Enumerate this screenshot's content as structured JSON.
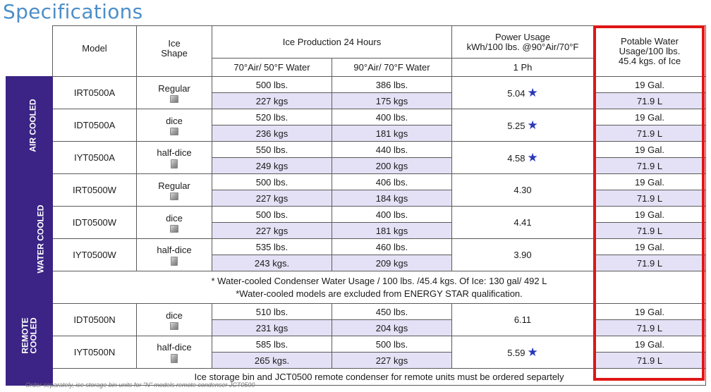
{
  "title": "Specifications",
  "headers": {
    "model": "Model",
    "ice_shape_line1": "Ice",
    "ice_shape_line2": "Shape",
    "production": "Ice Production 24 Hours",
    "prod_col1": "70°Air/ 50°F Water",
    "prod_col2": "90°Air/ 70°F Water",
    "power_line1": "Power Usage",
    "power_line2": "kWh/100 lbs. @90°Air/70°F",
    "power_sub": "1 Ph",
    "water_line1": "Potable Water",
    "water_line2": "Usage/100 lbs.",
    "water_line3": "45.4 kgs. of Ice"
  },
  "groups": [
    {
      "label": "AIR COOLED",
      "rows": [
        {
          "model": "IRT0500A",
          "shape": "Regular",
          "shape_icon": "regular-cube-icon",
          "p70_lbs": "500 lbs.",
          "p70_kg": "227 kgs",
          "p90_lbs": "386 lbs.",
          "p90_kg": "175 kgs",
          "power": "5.04",
          "star": true,
          "water_gal": "19 Gal.",
          "water_l": "71.9 L"
        },
        {
          "model": "IDT0500A",
          "shape": "dice",
          "shape_icon": "dice-cube-icon",
          "p70_lbs": "520 lbs.",
          "p70_kg": "236 kgs",
          "p90_lbs": "400 lbs.",
          "p90_kg": "181 kgs",
          "power": "5.25",
          "star": true,
          "water_gal": "19 Gal.",
          "water_l": "71.9 L"
        },
        {
          "model": "IYT0500A",
          "shape": "half-dice",
          "shape_icon": "half-dice-cube-icon",
          "p70_lbs": "550 lbs.",
          "p70_kg": "249 kgs",
          "p90_lbs": "440 lbs.",
          "p90_kg": "200 kgs",
          "power": "4.58",
          "star": true,
          "water_gal": "19 Gal.",
          "water_l": "71.9 L"
        }
      ]
    },
    {
      "label": "WATER COOLED",
      "rows": [
        {
          "model": "IRT0500W",
          "shape": "Regular",
          "shape_icon": "regular-cube-icon",
          "p70_lbs": "500 lbs.",
          "p70_kg": "227 kgs",
          "p90_lbs": "406 lbs.",
          "p90_kg": "184 kgs",
          "power": "4.30",
          "star": false,
          "water_gal": "19 Gal.",
          "water_l": "71.9 L"
        },
        {
          "model": "IDT0500W",
          "shape": "dice",
          "shape_icon": "dice-cube-icon",
          "p70_lbs": "500 lbs.",
          "p70_kg": "227 kgs",
          "p90_lbs": "400 lbs.",
          "p90_kg": "181 kgs",
          "power": "4.41",
          "star": false,
          "water_gal": "19 Gal.",
          "water_l": "71.9 L"
        },
        {
          "model": "IYT0500W",
          "shape": "half-dice",
          "shape_icon": "half-dice-cube-icon",
          "p70_lbs": "535 lbs.",
          "p70_kg": "243 kgs.",
          "p90_lbs": "460 lbs.",
          "p90_kg": "209 kgs",
          "power": "3.90",
          "star": false,
          "water_gal": "19 Gal.",
          "water_l": "71.9 L"
        }
      ],
      "note_line1": "* Water-cooled Condenser Water Usage / 100 lbs. /45.4 kgs. Of Ice: 130 gal/ 492 L",
      "note_line2": "*Water-cooled models are excluded from ENERGY STAR qualification."
    },
    {
      "label_line1": "REMOTE",
      "label_line2": "COOLED",
      "rows": [
        {
          "model": "IDT0500N",
          "shape": "dice",
          "shape_icon": "dice-cube-icon",
          "p70_lbs": "510 lbs.",
          "p70_kg": "231 kgs",
          "p90_lbs": "450 lbs.",
          "p90_kg": "204 kgs",
          "power": "6.11",
          "star": false,
          "water_gal": "19 Gal.",
          "water_l": "71.9 L"
        },
        {
          "model": "IYT0500N",
          "shape": "half-dice",
          "shape_icon": "half-dice-cube-icon",
          "p70_lbs": "585 lbs.",
          "p70_kg": "265 kgs.",
          "p90_lbs": "500 lbs.",
          "p90_kg": "227 kgs",
          "power": "5.59",
          "star": true,
          "water_gal": "19 Gal.",
          "water_l": "71.9 L"
        }
      ],
      "footer": "Ice storage bin and JCT0500 remote condenser for remote units must be ordered separtely"
    }
  ],
  "star_glyph": "★",
  "star_color": "#2b38b8",
  "sidebar_color": "#3b2485",
  "highlight_color": "#e01616",
  "footnote": "Order separately, ice storage bin units for \"N\" models remote condenser JCT0500"
}
